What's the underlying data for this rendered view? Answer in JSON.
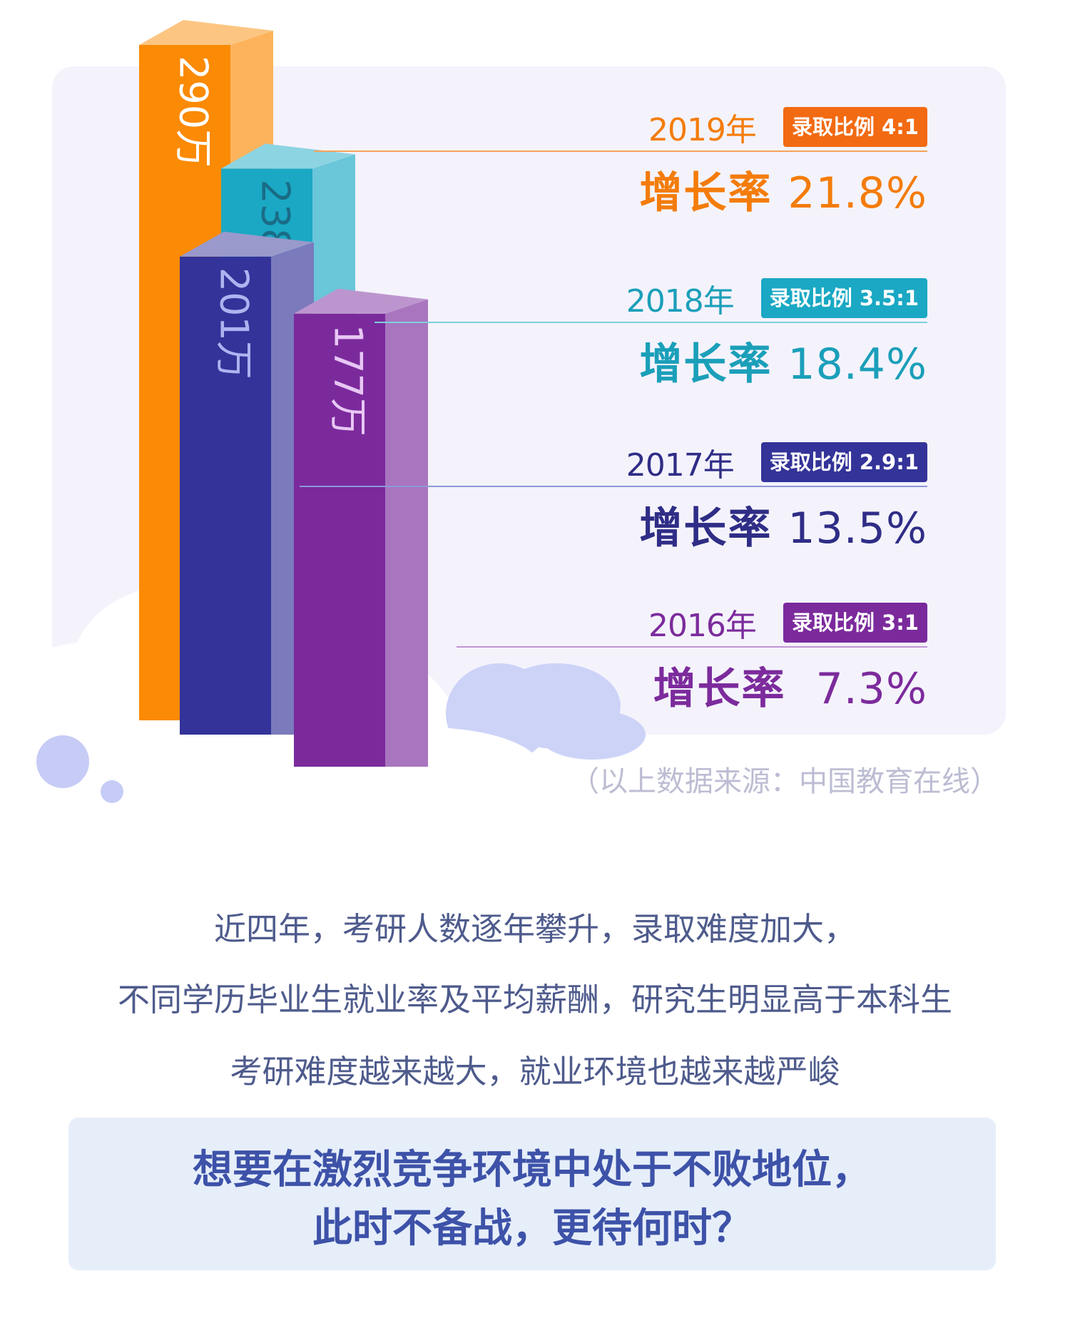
{
  "chart_data": {
    "type": "bar",
    "categories": [
      "2019年",
      "2018年",
      "2017年",
      "2016年"
    ],
    "values": [
      290,
      238,
      201,
      177
    ],
    "value_labels": [
      "290万",
      "238万",
      "201万",
      "177万"
    ],
    "unit": "万",
    "ratio_labels": [
      "录取比例 4:1",
      "录取比例 3.5:1",
      "录取比例 2.9:1",
      "录取比例 3:1"
    ],
    "growth_label": "增长率",
    "growth_rates": [
      "21.8%",
      "18.4%",
      "13.5%",
      "7.3%"
    ],
    "colors": [
      "#fb8a04",
      "#1aa8c4",
      "#333399",
      "#7b2a9c"
    ]
  },
  "source": "（以上数据来源：中国教育在线）",
  "body_lines": [
    "近四年，考研人数逐年攀升，录取难度加大，",
    "不同学历毕业生就业率及平均薪酬，研究生明显高于本科生",
    "考研难度越来越大，就业环境也越来越严峻"
  ],
  "callout": {
    "line1": "想要在激烈竞争环境中处于不败地位，",
    "line2": "此时不备战，更待何时？"
  }
}
